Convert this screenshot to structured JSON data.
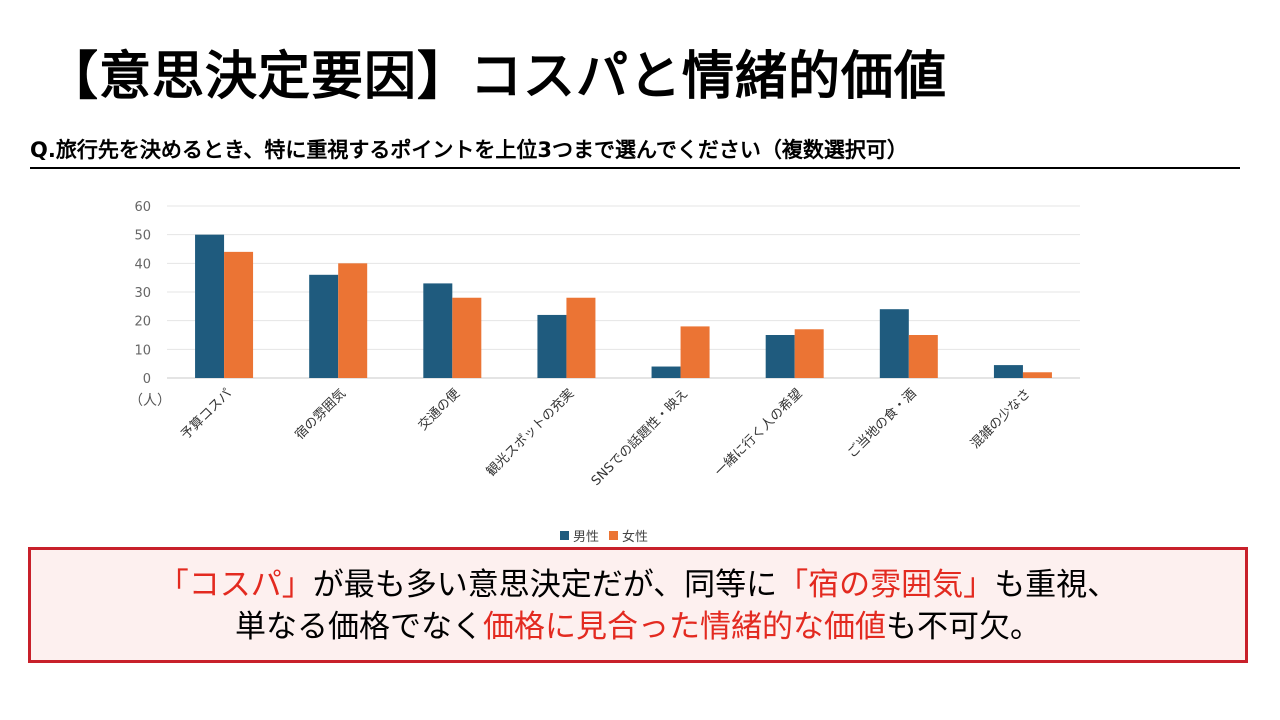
{
  "title": "【意思決定要因】コスパと情緒的価値",
  "question": "Q.旅行先を決めるとき、特に重視するポイントを上位3つまで選んでください（複数選択可）",
  "colors": {
    "male": "#1f5b7e",
    "female": "#eb7434",
    "accent_red": "#e32a20",
    "box_border": "#c8202a"
  },
  "chart_data": {
    "type": "bar",
    "categories": [
      "予算コスパ",
      "宿の雰囲気",
      "交通の便",
      "観光スポットの充実",
      "SNSでの話題性・映え",
      "一緒に行く人の希望",
      "ご当地の食・酒",
      "混雑の少なさ"
    ],
    "series": [
      {
        "name": "男性",
        "values": [
          50,
          36,
          33,
          22,
          4,
          15,
          24,
          4.5
        ]
      },
      {
        "name": "女性",
        "values": [
          44,
          40,
          28,
          28,
          18,
          17,
          15,
          2
        ]
      }
    ],
    "ylim": [
      0,
      60
    ],
    "yticks": [
      "0",
      "10",
      "20",
      "30",
      "40",
      "50",
      "60"
    ],
    "yunit": "（人）",
    "grid": true,
    "legend_position": "bottom"
  },
  "callout": {
    "line1_a": "「コスパ」",
    "line1_b": "が最も多い意思決定だが、同等に",
    "line1_c": "「宿の雰囲気」",
    "line1_d": "も重視、",
    "line2_a": "単なる価格でなく",
    "line2_b": "価格に見合った情緒的な価値",
    "line2_c": "も不可欠。"
  }
}
